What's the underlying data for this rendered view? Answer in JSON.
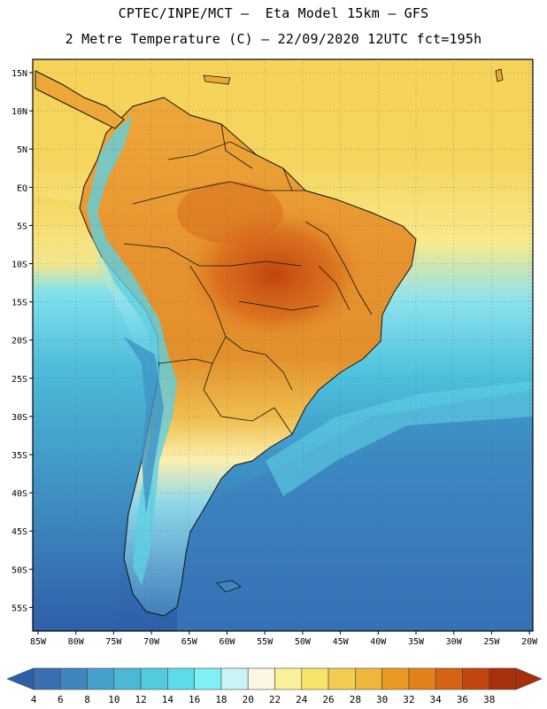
{
  "header": {
    "line1": "CPTEC/INPE/MCT –  Eta Model 15km – GFS",
    "line2": "2 Metre Temperature (C) – 22/09/2020 12UTC fct=195h"
  },
  "map": {
    "lon_labels": [
      "85W",
      "80W",
      "75W",
      "70W",
      "65W",
      "60W",
      "55W",
      "50W",
      "45W",
      "40W",
      "35W",
      "30W",
      "25W",
      "20W"
    ],
    "lat_labels": [
      "15N",
      "10N",
      "5N",
      "EQ",
      "5S",
      "10S",
      "15S",
      "20S",
      "25S",
      "30S",
      "35S",
      "40S",
      "45S",
      "50S",
      "55S"
    ]
  },
  "colorbar": {
    "values": [
      "4",
      "6",
      "8",
      "10",
      "12",
      "14",
      "16",
      "18",
      "20",
      "22",
      "24",
      "26",
      "28",
      "30",
      "32",
      "34",
      "36",
      "38"
    ],
    "colors": [
      "#3a6fb2",
      "#3f86c0",
      "#45a0cc",
      "#4cb8d6",
      "#52cbe0",
      "#5cdcea",
      "#7ef0f6",
      "#c8f4f8",
      "#fdf6e2",
      "#fbf09a",
      "#f8e36a",
      "#f3cc52",
      "#eeb63a",
      "#e99a20",
      "#e3801a",
      "#d66214",
      "#c24510",
      "#a8300c"
    ],
    "low_color": "#2e5ea8",
    "high_color": "#a8300c"
  }
}
